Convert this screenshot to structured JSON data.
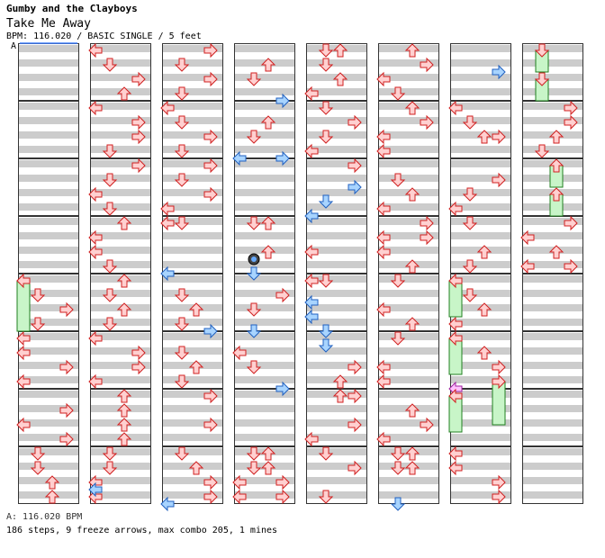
{
  "artist": "Gumby and the Clayboys",
  "title": "Take Me Away",
  "info": "BPM: 116.020 / BASIC SINGLE / 5 feet",
  "bpm_marker": "A",
  "footer_bpm": "A: 116.020 BPM",
  "footer_stats": "186 steps, 9 freeze arrows, max combo 205, 1 mines",
  "colors": {
    "stripe": "#cccccc",
    "border": "#333333",
    "red_arrow_fill": "#ffd0d0",
    "red_arrow_stroke": "#d02020",
    "blue_arrow_fill": "#a8d4ff",
    "blue_arrow_stroke": "#2060c0",
    "freeze_fill": "#c8f5c8",
    "freeze_stroke": "#208020",
    "magenta_fill": "#ffc0ff",
    "bpm_line": "#4080ff"
  },
  "icons": {
    "arrow": "direction-arrow-icon",
    "mine": "mine-icon"
  }
}
